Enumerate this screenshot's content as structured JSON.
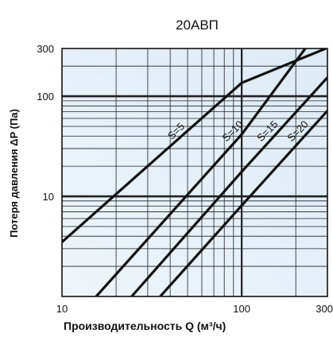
{
  "chart_data": {
    "type": "line",
    "title": "20АВП",
    "xlabel": "Производительность Q (м³/ч)",
    "ylabel": "Потеря давления  ΔP (Па)",
    "x_scale": "log",
    "y_scale": "log",
    "xlim": [
      10,
      300
    ],
    "ylim": [
      1,
      300
    ],
    "x_ticks": [
      {
        "value": 10,
        "label": "10"
      },
      {
        "value": 100,
        "label": "100"
      },
      {
        "value": 300,
        "label": "300"
      }
    ],
    "y_ticks": [
      {
        "value": 10,
        "label": "10"
      },
      {
        "value": 100,
        "label": "100"
      },
      {
        "value": 300,
        "label": "300"
      }
    ],
    "grid": true,
    "background_color": "#dcebf5",
    "line_color": "#111111",
    "series": [
      {
        "name": "S=5",
        "x": [
          10,
          100,
          294
        ],
        "y": [
          3.5,
          136,
          300
        ]
      },
      {
        "name": "S=10",
        "x": [
          15.5,
          100,
          226
        ],
        "y": [
          1,
          41.6,
          300
        ]
      },
      {
        "name": "S=15",
        "x": [
          24.4,
          100,
          300
        ],
        "y": [
          1,
          17.6,
          154
        ]
      },
      {
        "name": "S=20",
        "x": [
          35.2,
          100,
          300
        ],
        "y": [
          1,
          8.1,
          71.6
        ]
      }
    ]
  }
}
